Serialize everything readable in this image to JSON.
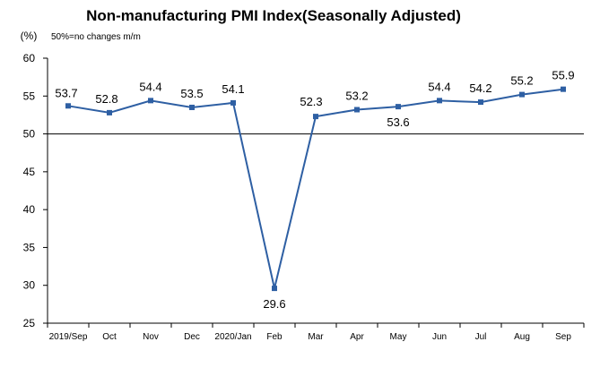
{
  "chart_data": {
    "type": "line",
    "title": "Non-manufacturing PMI Index(Seasonally Adjusted)",
    "unit_label": "(%)",
    "note": "50%=no changes  m/m",
    "categories": [
      "2019/Sep",
      "Oct",
      "Nov",
      "Dec",
      "2020/Jan",
      "Feb",
      "Mar",
      "Apr",
      "May",
      "Jun",
      "Jul",
      "Aug",
      "Sep"
    ],
    "series": [
      {
        "values": [
          53.7,
          52.8,
          54.4,
          53.5,
          54.1,
          29.6,
          52.3,
          53.2,
          53.6,
          54.4,
          54.2,
          55.2,
          55.9
        ],
        "labels": [
          "53.7",
          "52.8",
          "54.4",
          "53.5",
          "54.1",
          "29.6",
          "52.3",
          "53.2",
          "53.6",
          "54.4",
          "54.2",
          "55.2",
          "55.9"
        ]
      }
    ],
    "yticks": [
      25,
      30,
      35,
      40,
      45,
      50,
      55,
      60
    ],
    "ylim": [
      25,
      60
    ],
    "reference_line": 50,
    "line_color": "#2e5fa3",
    "axis_color": "#000000",
    "grid": false
  }
}
